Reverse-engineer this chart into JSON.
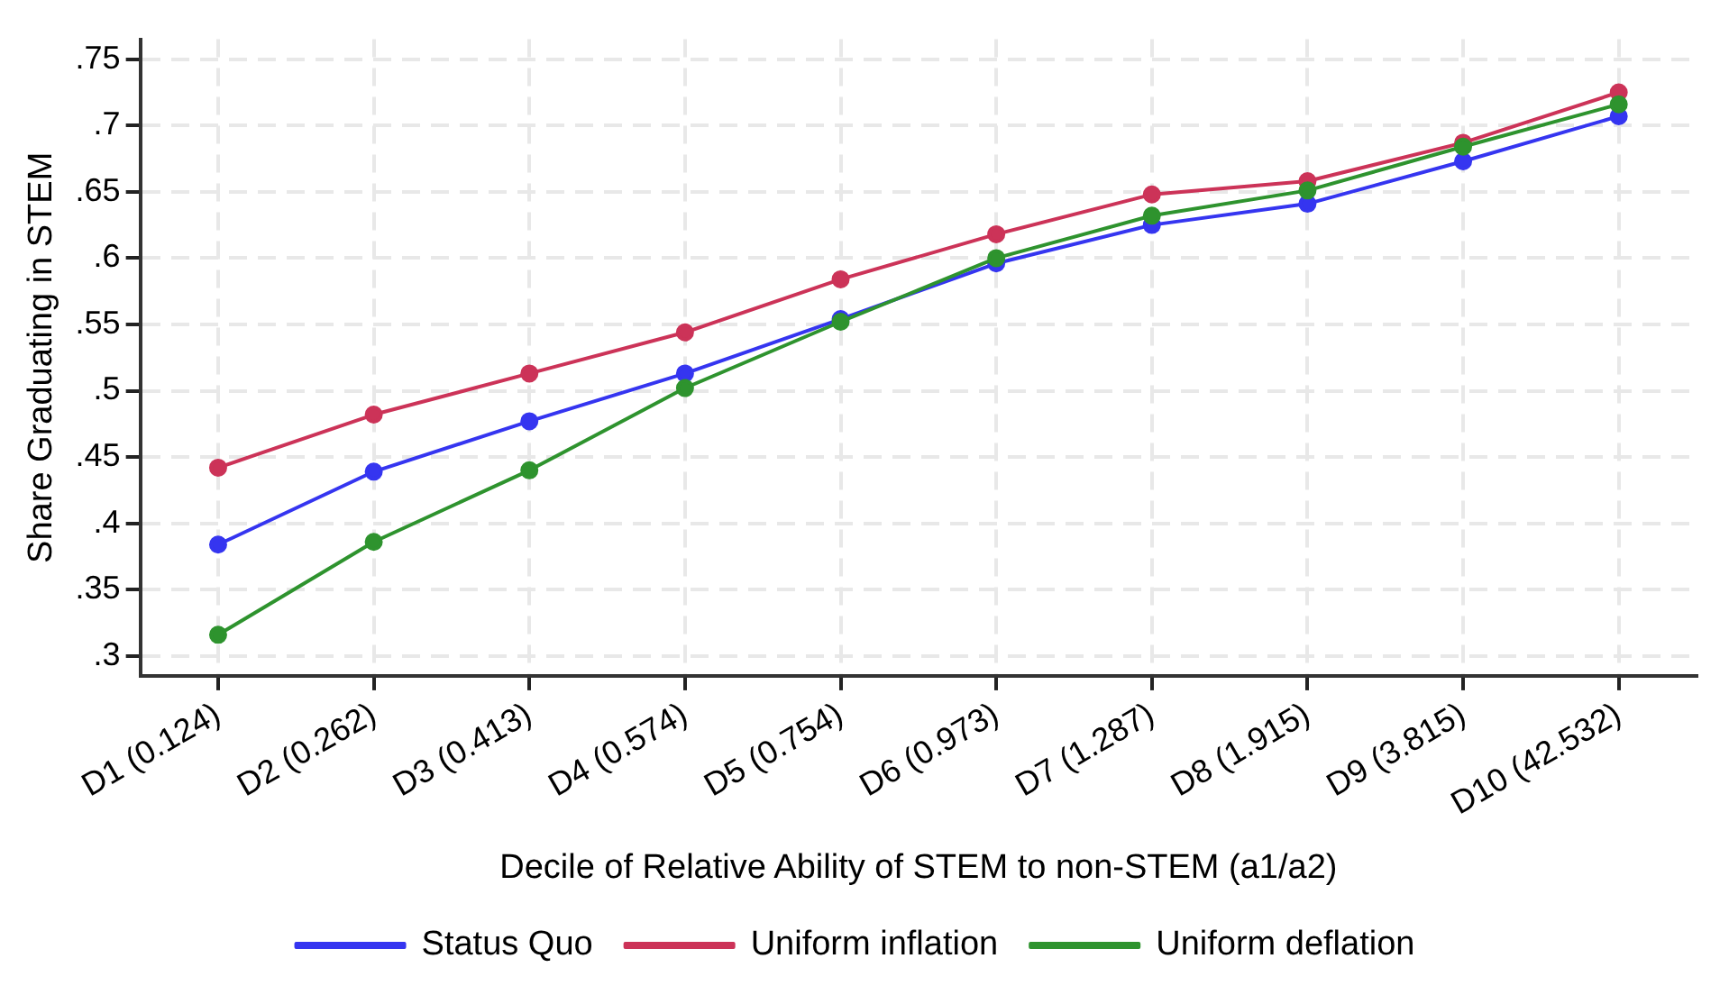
{
  "chart_data": {
    "type": "line",
    "xlabel": "Decile of Relative Ability of STEM to non-STEM (a1/a2)",
    "ylabel": "Share Graduating in STEM",
    "categories": [
      "D1 (0.124)",
      "D2 (0.262)",
      "D3 (0.413)",
      "D4 (0.574)",
      "D5 (0.754)",
      "D6 (0.973)",
      "D7 (1.287)",
      "D8 (1.915)",
      "D9 (3.815)",
      "D10 (42.532)"
    ],
    "series": [
      {
        "name": "Status Quo",
        "color": "#3535f0",
        "values": [
          0.384,
          0.439,
          0.477,
          0.513,
          0.554,
          0.596,
          0.625,
          0.641,
          0.673,
          0.707
        ]
      },
      {
        "name": "Uniform inflation",
        "color": "#cc3358",
        "values": [
          0.442,
          0.482,
          0.513,
          0.544,
          0.584,
          0.618,
          0.648,
          0.658,
          0.687,
          0.725
        ]
      },
      {
        "name": "Uniform deflation",
        "color": "#2e932e",
        "values": [
          0.316,
          0.386,
          0.44,
          0.502,
          0.552,
          0.6,
          0.632,
          0.651,
          0.684,
          0.716
        ]
      }
    ],
    "ylim": [
      0.285,
      0.765
    ],
    "yticks": [
      {
        "value": 0.3,
        "label": ".3"
      },
      {
        "value": 0.35,
        "label": ".35"
      },
      {
        "value": 0.4,
        "label": ".4"
      },
      {
        "value": 0.45,
        "label": ".45"
      },
      {
        "value": 0.5,
        "label": ".5"
      },
      {
        "value": 0.55,
        "label": ".55"
      },
      {
        "value": 0.6,
        "label": ".6"
      },
      {
        "value": 0.65,
        "label": ".65"
      },
      {
        "value": 0.7,
        "label": ".7"
      },
      {
        "value": 0.75,
        "label": ".75"
      }
    ],
    "grid": true,
    "legend": "bottom",
    "marker": "circle",
    "line_style": "solid"
  }
}
